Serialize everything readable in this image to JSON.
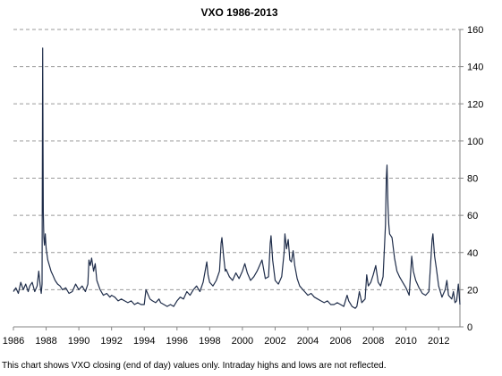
{
  "chart_data": {
    "type": "line",
    "title": "VXO 1986-2013",
    "xlabel": "",
    "ylabel": "",
    "note": "This chart shows VXO closing (end of day) values only. Intraday highs and lows are not reflected.",
    "xlim": [
      1986,
      2013.3
    ],
    "ylim": [
      0,
      160
    ],
    "y_axis_side": "right",
    "grid": "horizontal dashed",
    "line_color": "#1f2d4a",
    "x_ticks": [
      1986,
      1988,
      1990,
      1992,
      1994,
      1996,
      1998,
      2000,
      2002,
      2004,
      2006,
      2008,
      2010,
      2012
    ],
    "y_ticks": [
      0,
      20,
      40,
      60,
      80,
      100,
      120,
      140,
      160
    ],
    "series": [
      {
        "name": "",
        "points": [
          [
            1986.0,
            19
          ],
          [
            1986.15,
            21
          ],
          [
            1986.3,
            18
          ],
          [
            1986.45,
            24
          ],
          [
            1986.6,
            20
          ],
          [
            1986.75,
            23
          ],
          [
            1986.9,
            19
          ],
          [
            1987.0,
            22
          ],
          [
            1987.15,
            24
          ],
          [
            1987.3,
            19
          ],
          [
            1987.45,
            22
          ],
          [
            1987.55,
            30
          ],
          [
            1987.65,
            21
          ],
          [
            1987.7,
            18
          ],
          [
            1987.75,
            23
          ],
          [
            1987.79,
            150
          ],
          [
            1987.81,
            95
          ],
          [
            1987.83,
            62
          ],
          [
            1987.86,
            48
          ],
          [
            1987.9,
            44
          ],
          [
            1987.95,
            50
          ],
          [
            1988.0,
            42
          ],
          [
            1988.1,
            36
          ],
          [
            1988.2,
            33
          ],
          [
            1988.3,
            30
          ],
          [
            1988.4,
            28
          ],
          [
            1988.55,
            25
          ],
          [
            1988.7,
            23
          ],
          [
            1988.85,
            22
          ],
          [
            1989.0,
            20
          ],
          [
            1989.2,
            21
          ],
          [
            1989.4,
            18
          ],
          [
            1989.6,
            19
          ],
          [
            1989.8,
            23
          ],
          [
            1990.0,
            20
          ],
          [
            1990.2,
            22
          ],
          [
            1990.4,
            19
          ],
          [
            1990.55,
            23
          ],
          [
            1990.62,
            36
          ],
          [
            1990.7,
            33
          ],
          [
            1990.78,
            37
          ],
          [
            1990.9,
            30
          ],
          [
            1991.0,
            34
          ],
          [
            1991.1,
            25
          ],
          [
            1991.3,
            20
          ],
          [
            1991.5,
            17
          ],
          [
            1991.7,
            18
          ],
          [
            1991.9,
            16
          ],
          [
            1992.0,
            17
          ],
          [
            1992.2,
            16
          ],
          [
            1992.4,
            14
          ],
          [
            1992.6,
            15
          ],
          [
            1992.8,
            14
          ],
          [
            1993.0,
            13
          ],
          [
            1993.2,
            14
          ],
          [
            1993.4,
            12
          ],
          [
            1993.6,
            13
          ],
          [
            1993.8,
            12
          ],
          [
            1994.0,
            12
          ],
          [
            1994.1,
            20
          ],
          [
            1994.2,
            18
          ],
          [
            1994.35,
            15
          ],
          [
            1994.5,
            14
          ],
          [
            1994.7,
            13
          ],
          [
            1994.9,
            15
          ],
          [
            1995.0,
            13
          ],
          [
            1995.2,
            12
          ],
          [
            1995.4,
            11
          ],
          [
            1995.6,
            12
          ],
          [
            1995.8,
            11
          ],
          [
            1996.0,
            14
          ],
          [
            1996.2,
            16
          ],
          [
            1996.4,
            15
          ],
          [
            1996.6,
            19
          ],
          [
            1996.8,
            17
          ],
          [
            1997.0,
            20
          ],
          [
            1997.2,
            22
          ],
          [
            1997.4,
            19
          ],
          [
            1997.6,
            24
          ],
          [
            1997.82,
            35
          ],
          [
            1997.9,
            28
          ],
          [
            1998.0,
            24
          ],
          [
            1998.2,
            22
          ],
          [
            1998.4,
            25
          ],
          [
            1998.6,
            30
          ],
          [
            1998.7,
            45
          ],
          [
            1998.75,
            48
          ],
          [
            1998.85,
            38
          ],
          [
            1998.95,
            30
          ],
          [
            1999.0,
            31
          ],
          [
            1999.2,
            27
          ],
          [
            1999.4,
            25
          ],
          [
            1999.6,
            29
          ],
          [
            1999.8,
            26
          ],
          [
            2000.0,
            30
          ],
          [
            2000.15,
            34
          ],
          [
            2000.3,
            29
          ],
          [
            2000.5,
            25
          ],
          [
            2000.7,
            27
          ],
          [
            2000.9,
            30
          ],
          [
            2001.0,
            32
          ],
          [
            2001.2,
            36
          ],
          [
            2001.4,
            26
          ],
          [
            2001.6,
            27
          ],
          [
            2001.7,
            45
          ],
          [
            2001.75,
            49
          ],
          [
            2001.85,
            36
          ],
          [
            2002.0,
            25
          ],
          [
            2002.2,
            23
          ],
          [
            2002.4,
            27
          ],
          [
            2002.55,
            40
          ],
          [
            2002.6,
            50
          ],
          [
            2002.7,
            42
          ],
          [
            2002.8,
            47
          ],
          [
            2002.9,
            36
          ],
          [
            2003.0,
            35
          ],
          [
            2003.1,
            41
          ],
          [
            2003.2,
            33
          ],
          [
            2003.35,
            26
          ],
          [
            2003.5,
            22
          ],
          [
            2003.7,
            20
          ],
          [
            2003.9,
            18
          ],
          [
            2004.0,
            17
          ],
          [
            2004.2,
            18
          ],
          [
            2004.4,
            16
          ],
          [
            2004.6,
            15
          ],
          [
            2004.8,
            14
          ],
          [
            2005.0,
            13
          ],
          [
            2005.2,
            14
          ],
          [
            2005.4,
            12
          ],
          [
            2005.6,
            12
          ],
          [
            2005.8,
            13
          ],
          [
            2006.0,
            12
          ],
          [
            2006.2,
            11
          ],
          [
            2006.4,
            17
          ],
          [
            2006.5,
            14
          ],
          [
            2006.7,
            11
          ],
          [
            2006.9,
            10
          ],
          [
            2007.0,
            11
          ],
          [
            2007.15,
            19
          ],
          [
            2007.3,
            13
          ],
          [
            2007.5,
            15
          ],
          [
            2007.6,
            28
          ],
          [
            2007.7,
            22
          ],
          [
            2007.85,
            24
          ],
          [
            2008.0,
            28
          ],
          [
            2008.15,
            33
          ],
          [
            2008.3,
            24
          ],
          [
            2008.45,
            22
          ],
          [
            2008.6,
            27
          ],
          [
            2008.75,
            55
          ],
          [
            2008.8,
            80
          ],
          [
            2008.84,
            87
          ],
          [
            2008.9,
            65
          ],
          [
            2008.95,
            55
          ],
          [
            2009.0,
            50
          ],
          [
            2009.15,
            48
          ],
          [
            2009.3,
            37
          ],
          [
            2009.45,
            30
          ],
          [
            2009.6,
            27
          ],
          [
            2009.8,
            24
          ],
          [
            2010.0,
            21
          ],
          [
            2010.2,
            17
          ],
          [
            2010.35,
            38
          ],
          [
            2010.45,
            30
          ],
          [
            2010.6,
            25
          ],
          [
            2010.8,
            21
          ],
          [
            2011.0,
            18
          ],
          [
            2011.2,
            17
          ],
          [
            2011.4,
            19
          ],
          [
            2011.6,
            47
          ],
          [
            2011.65,
            50
          ],
          [
            2011.75,
            38
          ],
          [
            2011.85,
            32
          ],
          [
            2012.0,
            22
          ],
          [
            2012.2,
            16
          ],
          [
            2012.4,
            20
          ],
          [
            2012.5,
            25
          ],
          [
            2012.6,
            17
          ],
          [
            2012.8,
            15
          ],
          [
            2012.9,
            19
          ],
          [
            2013.0,
            13
          ],
          [
            2013.1,
            14
          ],
          [
            2013.2,
            23
          ],
          [
            2013.3,
            12
          ]
        ]
      }
    ]
  }
}
